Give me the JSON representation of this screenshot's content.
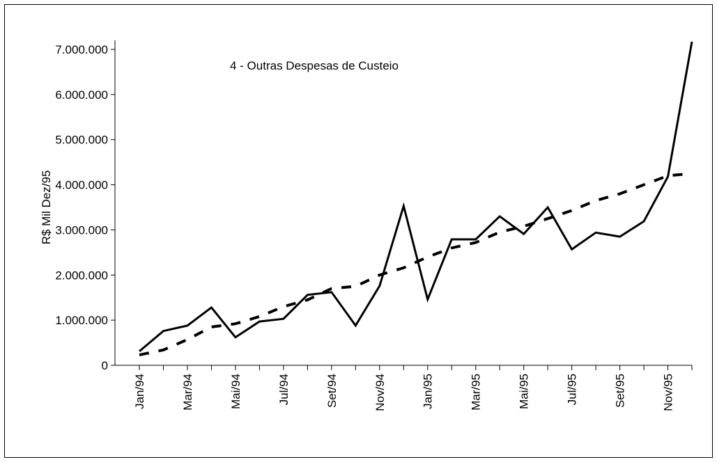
{
  "chart_data": {
    "type": "line",
    "title": "4 - Outras Despesas de Custeio",
    "y_label": "R$ Mil Dez/95",
    "categories": [
      "Jan/94",
      null,
      "Mar/94",
      null,
      "Mai/94",
      null,
      "Jul/94",
      null,
      "Set/94",
      null,
      "Nov/94",
      null,
      "Jan/95",
      null,
      "Mar/95",
      null,
      "Mai/95",
      null,
      "Jul/95",
      null,
      "Set/95",
      null,
      "Nov/95",
      null
    ],
    "series": [
      {
        "color": "#000000",
        "style": "solid",
        "values": [
          310000,
          760000,
          880000,
          1280000,
          620000,
          970000,
          1030000,
          1560000,
          1620000,
          880000,
          1760000,
          3530000,
          1460000,
          2790000,
          2790000,
          3300000,
          2910000,
          3500000,
          2570000,
          2940000,
          2850000,
          3190000,
          4180000,
          7170000
        ]
      },
      {
        "color": "#000000",
        "style": "dashed",
        "values": [
          230000,
          340000,
          570000,
          850000,
          920000,
          1080000,
          1300000,
          1450000,
          1700000,
          1750000,
          2000000,
          2160000,
          2400000,
          2600000,
          2720000,
          2950000,
          3080000,
          3250000,
          3430000,
          3650000,
          3800000,
          4000000,
          4200000,
          4250000
        ]
      }
    ],
    "ylim": [
      0,
      7200000
    ],
    "yticks": [
      0,
      {
        "value": 1000000,
        "label": "1.000.000"
      },
      {
        "value": 2000000,
        "label": "2.000.000"
      },
      {
        "value": 3000000,
        "label": "3.000.000"
      },
      {
        "value": 4000000,
        "label": "4.000.000"
      },
      {
        "value": 5000000,
        "label": "5.000.000"
      },
      {
        "value": 6000000,
        "label": "6.000.000"
      },
      {
        "value": 7000000,
        "label": "7.000.000"
      }
    ]
  }
}
